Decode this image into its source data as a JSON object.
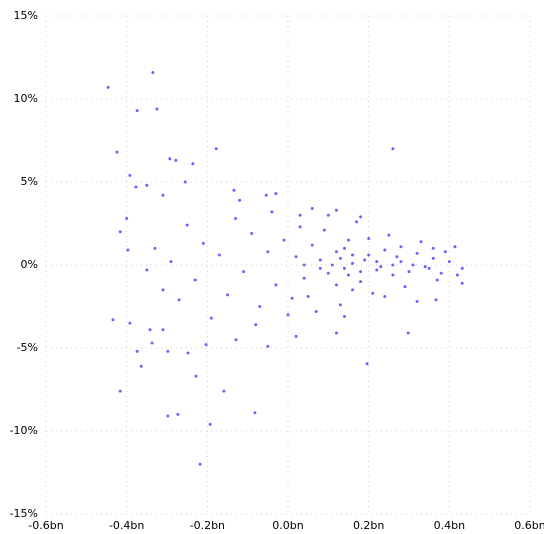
{
  "chart_data": {
    "type": "scatter",
    "color": "#0000ff",
    "grid": true,
    "xlim": [
      -0.6,
      0.6
    ],
    "xticks": [
      {
        "value": -0.6,
        "label": "-0.6bn"
      },
      {
        "value": -0.4,
        "label": "-0.4bn"
      },
      {
        "value": -0.2,
        "label": "-0.2bn"
      },
      {
        "value": 0,
        "label": "0.0bn"
      },
      {
        "value": 0.2,
        "label": "0.2bn"
      },
      {
        "value": 0.4,
        "label": "0.4bn"
      },
      {
        "value": 0.6,
        "label": "0.6bn"
      }
    ],
    "ylim": [
      -15,
      15
    ],
    "yticks": [
      {
        "value": -15,
        "label": "-15%"
      },
      {
        "value": -10,
        "label": "-10%"
      },
      {
        "value": -5,
        "label": "-5%"
      },
      {
        "value": 0,
        "label": "0%"
      },
      {
        "value": 5,
        "label": "5%"
      },
      {
        "value": 10,
        "label": "10%"
      },
      {
        "value": 15,
        "label": "15%"
      }
    ],
    "x": [
      -0.446,
      -0.335,
      -0.374,
      -0.325,
      -0.424,
      0.26,
      -0.178,
      -0.293,
      -0.278,
      -0.236,
      -0.392,
      -0.377,
      -0.255,
      -0.35,
      -0.31,
      -0.4,
      -0.416,
      -0.397,
      -0.434,
      -0.392,
      -0.374,
      -0.364,
      -0.416,
      -0.298,
      -0.273,
      -0.228,
      -0.159,
      -0.082,
      -0.193,
      -0.218,
      0.196,
      -0.298,
      -0.248,
      -0.337,
      -0.31,
      -0.203,
      -0.129,
      -0.05,
      -0.342,
      0.02,
      0.12,
      0.298,
      0.367,
      0.432,
      0.432,
      0.414,
      -0.03,
      -0.054,
      0.12,
      0.03,
      -0.134,
      0.02,
      0.04,
      0.06,
      0.08,
      0.1,
      0.12,
      0.14,
      0.15,
      0.16,
      0.18,
      0.2,
      0.22,
      0.24,
      0.26,
      0.28,
      0.3,
      0.32,
      0.34,
      0.36,
      0.38,
      0.4,
      0.05,
      0.09,
      0.13,
      0.17,
      0.21,
      0.25,
      0.29,
      0.33,
      0.37,
      0.11,
      0.13,
      0.15,
      0.19,
      0.23,
      0.27,
      0.31,
      0.35,
      0.07,
      0.1,
      0.14,
      0.18,
      0.03,
      0.01,
      -0.01,
      -0.03,
      -0.05,
      -0.07,
      -0.09,
      -0.11,
      -0.13,
      -0.15,
      -0.17,
      -0.19,
      -0.21,
      -0.23,
      -0.25,
      -0.27,
      -0.29,
      -0.31,
      -0.33,
      -0.35,
      -0.12,
      -0.08,
      -0.04,
      0.0,
      0.06,
      0.16,
      0.2,
      0.24,
      0.28,
      0.32,
      0.36,
      0.42,
      0.39,
      0.12,
      0.14,
      0.16,
      0.18,
      0.22,
      0.26,
      0.08,
      0.04
    ],
    "values": [
      10.7,
      11.6,
      9.3,
      9.4,
      6.8,
      7.0,
      7.0,
      6.4,
      6.3,
      6.1,
      5.4,
      4.7,
      5.0,
      4.8,
      4.2,
      2.8,
      2.0,
      0.9,
      -3.3,
      -3.5,
      -5.2,
      -6.1,
      -7.6,
      -9.1,
      -9.0,
      -6.7,
      -7.6,
      -8.9,
      -9.6,
      -12.0,
      -5.95,
      -5.2,
      -5.3,
      -4.7,
      -3.9,
      -4.8,
      -4.5,
      -4.9,
      -3.9,
      -4.3,
      -4.1,
      -4.1,
      -2.1,
      -0.2,
      -1.1,
      1.1,
      4.3,
      4.2,
      3.3,
      3.0,
      4.5,
      0.5,
      -0.8,
      1.2,
      0.3,
      -0.5,
      0.8,
      -0.2,
      1.5,
      0.1,
      -1.0,
      0.6,
      -0.3,
      0.9,
      -0.6,
      0.2,
      -0.4,
      0.7,
      -0.1,
      0.4,
      -0.5,
      0.2,
      -1.9,
      2.1,
      -2.4,
      2.6,
      -1.7,
      1.8,
      -1.3,
      1.4,
      -0.9,
      0.0,
      0.4,
      -0.6,
      0.3,
      -0.1,
      0.5,
      0.0,
      -0.2,
      -2.8,
      3.0,
      -3.1,
      2.9,
      2.3,
      -2.0,
      1.5,
      -1.2,
      0.8,
      -2.5,
      1.9,
      -0.4,
      2.8,
      -1.8,
      0.6,
      -3.2,
      1.3,
      -0.9,
      2.4,
      -2.1,
      0.2,
      -1.5,
      1.0,
      -0.3,
      3.9,
      -3.6,
      3.2,
      -3.0,
      3.4,
      -1.5,
      1.6,
      -1.9,
      1.1,
      -2.2,
      1.0,
      -0.6,
      0.8,
      -1.2,
      1.0,
      0.6,
      -0.4,
      0.2,
      0.0,
      -0.2,
      0.0
    ]
  }
}
